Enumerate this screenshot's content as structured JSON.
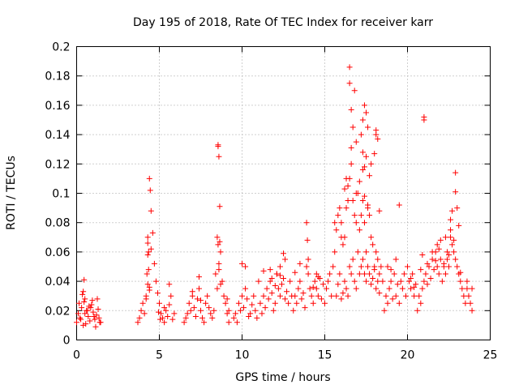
{
  "chart_data": {
    "type": "scatter",
    "title": "Day 195 of 2018, Rate Of TEC Index for receiver karr",
    "xlabel": "GPS time / hours",
    "ylabel": "ROTI / TECUs",
    "xlim": [
      0,
      25
    ],
    "ylim": [
      0,
      0.2
    ],
    "xticks": [
      0,
      5,
      10,
      15,
      20,
      25
    ],
    "xtick_labels": [
      "0",
      "5",
      "10",
      "15",
      "20",
      "25"
    ],
    "yticks": [
      0,
      0.02,
      0.04,
      0.06,
      0.08,
      0.1,
      0.12,
      0.14,
      0.16,
      0.18,
      0.2
    ],
    "ytick_labels": [
      "0",
      "0.02",
      "0.04",
      "0.06",
      "0.08",
      "0.1",
      "0.12",
      "0.14",
      "0.16",
      "0.18",
      "0.2"
    ],
    "grid": true,
    "marker": "plus",
    "color": "#ff0000",
    "series": [
      {
        "name": "ROTI",
        "x": [
          0.0,
          0.1,
          0.2,
          0.3,
          0.4,
          0.45,
          0.5,
          0.6,
          0.7,
          0.8,
          0.9,
          1.0,
          1.1,
          1.2,
          1.3,
          1.4,
          0.15,
          0.35,
          0.55,
          0.75,
          0.95,
          1.15,
          1.35,
          0.4,
          0.45,
          0.5,
          0.25,
          0.65,
          0.85,
          1.05,
          1.25,
          1.45,
          3.7,
          3.8,
          3.9,
          4.0,
          4.1,
          4.2,
          4.25,
          4.3,
          4.35,
          4.4,
          4.45,
          4.5,
          4.6,
          4.7,
          4.8,
          4.9,
          5.0,
          5.1,
          5.2,
          5.3,
          5.4,
          5.5,
          5.6,
          5.7,
          5.8,
          5.9,
          4.3,
          4.3,
          4.35,
          4.4,
          4.2,
          4.4,
          4.3,
          4.5,
          5.6,
          5.3,
          5.05,
          4.95,
          6.5,
          6.6,
          6.7,
          6.8,
          6.9,
          7.0,
          7.1,
          7.2,
          7.3,
          7.4,
          7.5,
          7.6,
          7.7,
          7.8,
          7.9,
          8.0,
          8.1,
          8.2,
          8.3,
          8.4,
          8.5,
          8.55,
          8.6,
          8.65,
          8.7,
          8.8,
          8.9,
          9.0,
          9.1,
          9.2,
          8.55,
          8.55,
          8.6,
          8.5,
          8.6,
          8.65,
          8.7,
          7.0,
          7.5,
          7.4,
          9.2,
          9.1,
          9.5,
          9.6,
          9.7,
          9.8,
          9.9,
          10.0,
          10.1,
          10.2,
          10.3,
          10.4,
          10.5,
          10.6,
          10.7,
          10.8,
          10.9,
          11.0,
          11.1,
          11.2,
          11.3,
          11.4,
          11.5,
          11.6,
          11.7,
          11.8,
          11.9,
          12.0,
          12.1,
          12.2,
          12.3,
          12.4,
          12.5,
          12.6,
          12.7,
          12.8,
          12.9,
          13.0,
          10.2,
          10.0,
          11.3,
          11.8,
          11.7,
          12.1,
          12.3,
          12.6,
          12.5,
          12.3,
          12.0,
          13.1,
          13.2,
          13.3,
          13.4,
          13.5,
          13.6,
          13.7,
          13.8,
          13.9,
          14.0,
          14.1,
          14.2,
          14.3,
          14.4,
          14.5,
          14.6,
          14.7,
          14.8,
          14.9,
          13.9,
          13.95,
          14.0,
          13.5,
          13.2,
          14.3,
          14.5,
          14.6,
          15.0,
          15.1,
          15.2,
          15.3,
          15.4,
          15.5,
          15.6,
          15.7,
          15.8,
          15.9,
          16.0,
          16.1,
          16.2,
          16.3,
          16.4,
          16.5,
          16.6,
          16.7,
          16.8,
          16.9,
          17.0,
          17.1,
          17.2,
          17.3,
          17.4,
          17.5,
          17.6,
          17.7,
          17.8,
          17.9,
          18.0,
          18.1,
          18.2,
          18.3,
          18.4,
          18.5,
          15.7,
          15.8,
          15.9,
          16.0,
          16.1,
          16.2,
          16.3,
          16.4,
          16.5,
          16.6,
          16.7,
          16.8,
          16.9,
          17.0,
          17.1,
          17.2,
          17.3,
          17.4,
          17.5,
          17.6,
          17.7,
          17.8,
          17.9,
          18.0,
          18.1,
          18.2,
          18.3,
          16.5,
          16.5,
          16.6,
          16.8,
          16.6,
          17.4,
          17.5,
          17.3,
          17.6,
          17.2,
          16.9,
          17.3,
          17.5,
          17.4,
          17.7,
          17.1,
          18.1,
          18.2,
          18.1,
          18.0,
          17.8,
          17.3,
          17.4,
          16.9,
          16.3,
          16.2,
          16.4,
          15.6,
          16.0,
          17.6,
          18.3,
          16.7,
          18.6,
          18.7,
          18.8,
          18.9,
          19.0,
          19.1,
          19.2,
          19.3,
          19.4,
          19.5,
          19.6,
          19.7,
          19.8,
          19.9,
          20.0,
          20.1,
          20.2,
          20.3,
          20.4,
          20.5,
          19.5,
          19.3,
          19.0,
          18.8,
          20.2,
          20.4,
          20.6,
          20.7,
          20.8,
          20.9,
          21.0,
          21.1,
          21.2,
          21.3,
          21.4,
          21.5,
          21.6,
          21.7,
          21.8,
          21.9,
          22.0,
          22.1,
          22.2,
          22.3,
          22.4,
          22.5,
          22.6,
          22.7,
          22.8,
          22.9,
          23.0,
          23.1,
          23.2,
          23.3,
          23.4,
          23.5,
          23.6,
          23.7,
          23.8,
          23.9,
          21.0,
          21.0,
          21.5,
          21.8,
          22.0,
          22.3,
          22.5,
          22.6,
          22.8,
          22.9,
          22.9,
          23.0,
          22.7,
          22.6,
          23.1,
          21.9,
          21.7,
          22.2,
          20.8,
          20.9,
          21.2,
          22.4,
          23.2,
          23.6,
          23.9
        ],
        "y": [
          0.012,
          0.018,
          0.015,
          0.022,
          0.01,
          0.041,
          0.028,
          0.02,
          0.016,
          0.013,
          0.024,
          0.019,
          0.014,
          0.017,
          0.021,
          0.012,
          0.025,
          0.031,
          0.011,
          0.023,
          0.027,
          0.009,
          0.015,
          0.033,
          0.026,
          0.018,
          0.014,
          0.02,
          0.022,
          0.016,
          0.028,
          0.012,
          0.012,
          0.015,
          0.02,
          0.025,
          0.018,
          0.03,
          0.045,
          0.038,
          0.06,
          0.11,
          0.102,
          0.088,
          0.073,
          0.052,
          0.04,
          0.032,
          0.025,
          0.018,
          0.015,
          0.012,
          0.02,
          0.016,
          0.024,
          0.03,
          0.014,
          0.018,
          0.07,
          0.066,
          0.048,
          0.036,
          0.028,
          0.034,
          0.058,
          0.062,
          0.038,
          0.022,
          0.014,
          0.019,
          0.012,
          0.015,
          0.018,
          0.025,
          0.02,
          0.03,
          0.022,
          0.016,
          0.028,
          0.035,
          0.02,
          0.015,
          0.012,
          0.025,
          0.03,
          0.022,
          0.018,
          0.015,
          0.02,
          0.045,
          0.07,
          0.132,
          0.125,
          0.091,
          0.06,
          0.04,
          0.03,
          0.025,
          0.018,
          0.012,
          0.133,
          0.065,
          0.052,
          0.035,
          0.048,
          0.067,
          0.038,
          0.033,
          0.027,
          0.043,
          0.02,
          0.028,
          0.015,
          0.018,
          0.012,
          0.025,
          0.02,
          0.03,
          0.022,
          0.035,
          0.028,
          0.016,
          0.018,
          0.024,
          0.03,
          0.02,
          0.015,
          0.04,
          0.025,
          0.018,
          0.03,
          0.022,
          0.035,
          0.028,
          0.04,
          0.032,
          0.02,
          0.025,
          0.045,
          0.035,
          0.03,
          0.038,
          0.042,
          0.028,
          0.033,
          0.025,
          0.04,
          0.03,
          0.05,
          0.052,
          0.047,
          0.042,
          0.048,
          0.045,
          0.05,
          0.055,
          0.059,
          0.044,
          0.037,
          0.02,
          0.03,
          0.025,
          0.035,
          0.04,
          0.028,
          0.032,
          0.022,
          0.05,
          0.045,
          0.035,
          0.03,
          0.025,
          0.04,
          0.035,
          0.03,
          0.042,
          0.028,
          0.038,
          0.08,
          0.068,
          0.055,
          0.052,
          0.046,
          0.036,
          0.045,
          0.043,
          0.025,
          0.035,
          0.04,
          0.045,
          0.03,
          0.05,
          0.06,
          0.075,
          0.085,
          0.09,
          0.08,
          0.065,
          0.07,
          0.09,
          0.105,
          0.11,
          0.12,
          0.095,
          0.085,
          0.08,
          0.1,
          0.075,
          0.085,
          0.095,
          0.08,
          0.06,
          0.09,
          0.085,
          0.07,
          0.065,
          0.05,
          0.06,
          0.055,
          0.045,
          0.05,
          0.04,
          0.03,
          0.038,
          0.045,
          0.028,
          0.032,
          0.04,
          0.035,
          0.03,
          0.05,
          0.045,
          0.055,
          0.04,
          0.035,
          0.06,
          0.045,
          0.05,
          0.055,
          0.045,
          0.04,
          0.05,
          0.045,
          0.038,
          0.042,
          0.048,
          0.035,
          0.04,
          0.032,
          0.186,
          0.175,
          0.131,
          0.17,
          0.157,
          0.16,
          0.155,
          0.15,
          0.145,
          0.14,
          0.135,
          0.128,
          0.125,
          0.118,
          0.112,
          0.108,
          0.143,
          0.137,
          0.14,
          0.127,
          0.12,
          0.116,
          0.098,
          0.1,
          0.11,
          0.103,
          0.095,
          0.08,
          0.07,
          0.092,
          0.088,
          0.145,
          0.02,
          0.03,
          0.025,
          0.035,
          0.04,
          0.028,
          0.045,
          0.03,
          0.038,
          0.025,
          0.04,
          0.035,
          0.045,
          0.03,
          0.05,
          0.04,
          0.035,
          0.045,
          0.03,
          0.038,
          0.092,
          0.055,
          0.048,
          0.05,
          0.042,
          0.036,
          0.02,
          0.03,
          0.025,
          0.035,
          0.04,
          0.045,
          0.038,
          0.05,
          0.042,
          0.055,
          0.048,
          0.06,
          0.05,
          0.045,
          0.055,
          0.04,
          0.05,
          0.045,
          0.06,
          0.05,
          0.07,
          0.065,
          0.06,
          0.055,
          0.05,
          0.045,
          0.04,
          0.035,
          0.03,
          0.025,
          0.035,
          0.03,
          0.025,
          0.02,
          0.152,
          0.15,
          0.06,
          0.065,
          0.068,
          0.07,
          0.058,
          0.075,
          0.068,
          0.114,
          0.101,
          0.09,
          0.088,
          0.082,
          0.078,
          0.062,
          0.054,
          0.052,
          0.048,
          0.058,
          0.052,
          0.055,
          0.046,
          0.04,
          0.035
        ]
      }
    ]
  }
}
